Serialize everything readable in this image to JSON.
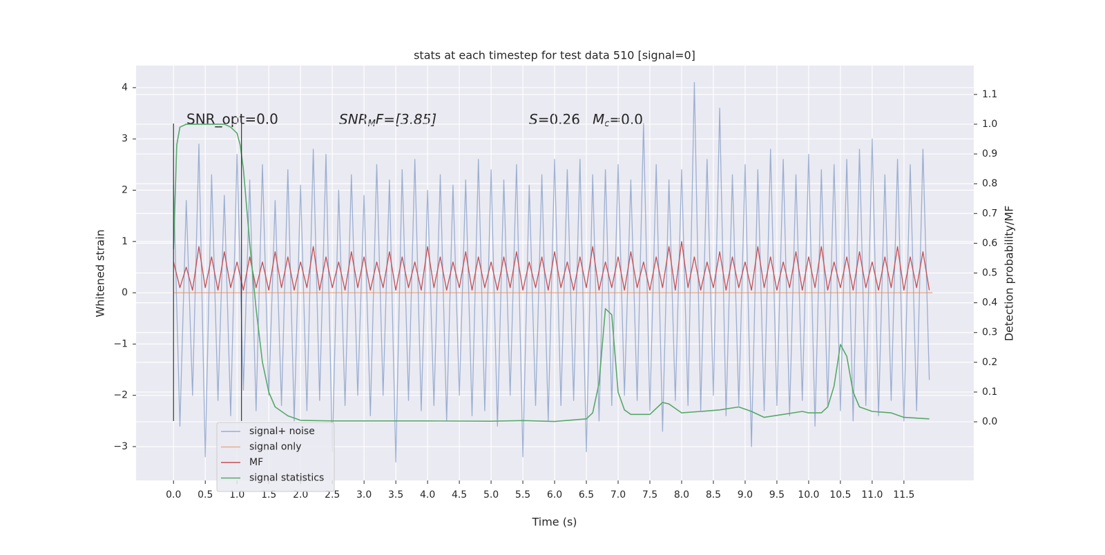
{
  "chart_data": {
    "type": "line",
    "title": "stats at each timestep for test data 510 [signal=0]",
    "xlabel": "Time (s)",
    "ylabel": "Whitened strain",
    "y2label": "Detection probability/MF",
    "xlim": [
      -0.59,
      12.6
    ],
    "ylim": [
      -3.66,
      4.43
    ],
    "y2lim": [
      -0.197,
      1.197
    ],
    "xticks": [
      {
        "value": 0,
        "label": "0.0"
      },
      {
        "value": 0.5,
        "label": "0.5"
      },
      {
        "value": 1,
        "label": "1.0"
      },
      {
        "value": 1.5,
        "label": "1.5"
      },
      {
        "value": 2,
        "label": "2.0"
      },
      {
        "value": 2.5,
        "label": "2.5"
      },
      {
        "value": 3,
        "label": "3.0"
      },
      {
        "value": 3.5,
        "label": "3.5"
      },
      {
        "value": 4,
        "label": "4.0"
      },
      {
        "value": 4.5,
        "label": "4.5"
      },
      {
        "value": 5,
        "label": "5.0"
      },
      {
        "value": 5.5,
        "label": "5.5"
      },
      {
        "value": 6,
        "label": "6.0"
      },
      {
        "value": 6.5,
        "label": "6.5"
      },
      {
        "value": 7,
        "label": "7.0"
      },
      {
        "value": 7.5,
        "label": "7.5"
      },
      {
        "value": 8,
        "label": "8.0"
      },
      {
        "value": 8.5,
        "label": "8.5"
      },
      {
        "value": 9,
        "label": "9.0"
      },
      {
        "value": 9.5,
        "label": "9.5"
      },
      {
        "value": 10,
        "label": "10.0"
      },
      {
        "value": 10.5,
        "label": "10.5"
      },
      {
        "value": 11,
        "label": "11.0"
      },
      {
        "value": 11.5,
        "label": "11.5"
      }
    ],
    "yticks": [
      {
        "value": -3,
        "label": "−3"
      },
      {
        "value": -2,
        "label": "−2"
      },
      {
        "value": -1,
        "label": "−1"
      },
      0,
      1,
      2,
      3,
      4
    ],
    "y2ticks": [
      {
        "value": 0,
        "label": "0.0"
      },
      {
        "value": 0.1,
        "label": "0.1"
      },
      {
        "value": 0.2,
        "label": "0.2"
      },
      {
        "value": 0.3,
        "label": "0.3"
      },
      {
        "value": 0.4,
        "label": "0.4"
      },
      {
        "value": 0.5,
        "label": "0.5"
      },
      {
        "value": 0.6,
        "label": "0.6"
      },
      {
        "value": 0.7,
        "label": "0.7"
      },
      {
        "value": 0.8,
        "label": "0.8"
      },
      {
        "value": 0.9,
        "label": "0.9"
      },
      {
        "value": 1.0,
        "label": "1.0"
      },
      {
        "value": 1.1,
        "label": "1.1"
      }
    ],
    "grid": true,
    "legend": "lower left",
    "x": [
      0.0,
      0.1,
      0.2,
      0.3,
      0.4,
      0.5,
      0.6,
      0.7,
      0.8,
      0.9,
      1.0,
      1.1,
      1.2,
      1.3,
      1.4,
      1.5,
      1.6,
      1.7,
      1.8,
      1.9,
      2.0,
      2.1,
      2.2,
      2.3,
      2.4,
      2.5,
      2.6,
      2.7,
      2.8,
      2.9,
      3.0,
      3.1,
      3.2,
      3.3,
      3.4,
      3.5,
      3.6,
      3.7,
      3.8,
      3.9,
      4.0,
      4.1,
      4.2,
      4.3,
      4.4,
      4.5,
      4.6,
      4.7,
      4.8,
      4.9,
      5.0,
      5.1,
      5.2,
      5.3,
      5.4,
      5.5,
      5.6,
      5.7,
      5.8,
      5.9,
      6.0,
      6.1,
      6.2,
      6.3,
      6.4,
      6.5,
      6.6,
      6.7,
      6.8,
      6.9,
      7.0,
      7.1,
      7.2,
      7.3,
      7.4,
      7.5,
      7.6,
      7.7,
      7.8,
      7.9,
      8.0,
      8.1,
      8.2,
      8.3,
      8.4,
      8.5,
      8.6,
      8.7,
      8.8,
      8.9,
      9.0,
      9.1,
      9.2,
      9.3,
      9.4,
      9.5,
      9.6,
      9.7,
      9.8,
      9.9,
      10.0,
      10.1,
      10.2,
      10.3,
      10.4,
      10.5,
      10.6,
      10.7,
      10.8,
      10.9,
      11.0,
      11.1,
      11.2,
      11.3,
      11.4,
      11.5,
      11.6,
      11.7,
      11.8,
      11.9
    ],
    "series": [
      {
        "name": "signal+ noise",
        "color": "#4c72b0",
        "values": [
          2.1,
          -2.6,
          1.8,
          -2.0,
          2.9,
          -3.2,
          2.3,
          -2.1,
          1.9,
          -2.4,
          2.7,
          -1.9,
          2.2,
          -2.3,
          2.5,
          -2.0,
          1.8,
          -2.2,
          2.4,
          -2.5,
          2.1,
          -2.3,
          2.8,
          -2.1,
          2.7,
          -3.1,
          2.0,
          -2.2,
          2.3,
          -2.0,
          1.9,
          -2.4,
          2.5,
          -2.0,
          2.2,
          -3.3,
          2.4,
          -2.1,
          2.6,
          -2.3,
          2.0,
          -2.2,
          2.3,
          -2.5,
          2.1,
          -2.0,
          2.2,
          -2.4,
          2.6,
          -2.3,
          2.4,
          -2.6,
          2.2,
          -2.0,
          2.5,
          -3.2,
          2.1,
          -2.2,
          2.3,
          -2.5,
          2.6,
          -2.2,
          2.4,
          -2.1,
          2.6,
          -3.1,
          2.3,
          -2.5,
          2.4,
          -2.2,
          2.5,
          -2.0,
          2.2,
          -2.1,
          3.3,
          -2.3,
          2.5,
          -2.7,
          2.2,
          -2.1,
          2.4,
          -2.2,
          4.1,
          -2.3,
          2.6,
          -2.0,
          3.6,
          -2.4,
          2.3,
          -2.2,
          2.5,
          -3.0,
          2.4,
          -2.3,
          2.8,
          -2.2,
          2.6,
          -2.4,
          2.3,
          -2.1,
          2.7,
          -2.6,
          2.4,
          -2.2,
          2.5,
          -2.3,
          2.6,
          -2.5,
          2.8,
          -2.2,
          3.0,
          -2.4,
          2.3,
          -2.1,
          2.6,
          -2.5,
          2.5,
          -2.3,
          2.8,
          -1.7
        ]
      },
      {
        "name": "signal only",
        "color": "#dd8452",
        "x": [
          0.0,
          11.95
        ],
        "values": [
          0.0,
          0.0
        ]
      },
      {
        "name": "MF",
        "color": "#c44e52",
        "values": [
          0.6,
          0.1,
          0.5,
          0.05,
          0.9,
          0.1,
          0.7,
          0.05,
          0.8,
          0.1,
          0.6,
          0.05,
          0.7,
          0.1,
          0.6,
          0.05,
          0.8,
          0.1,
          0.7,
          0.05,
          0.6,
          0.1,
          0.9,
          0.05,
          0.7,
          0.1,
          0.6,
          0.05,
          0.8,
          0.1,
          0.7,
          0.05,
          0.6,
          0.1,
          0.8,
          0.05,
          0.7,
          0.1,
          0.6,
          0.05,
          0.9,
          0.1,
          0.7,
          0.05,
          0.6,
          0.1,
          0.8,
          0.05,
          0.7,
          0.1,
          0.6,
          0.05,
          0.7,
          0.1,
          0.8,
          0.05,
          0.6,
          0.1,
          0.7,
          0.05,
          0.8,
          0.1,
          0.6,
          0.05,
          0.7,
          0.1,
          0.9,
          0.05,
          0.6,
          0.1,
          0.7,
          0.05,
          0.8,
          0.1,
          0.6,
          0.05,
          0.7,
          0.1,
          0.9,
          0.05,
          1.0,
          0.1,
          0.7,
          0.05,
          0.6,
          0.1,
          0.8,
          0.05,
          0.7,
          0.1,
          0.6,
          0.05,
          0.9,
          0.1,
          0.7,
          0.05,
          0.6,
          0.1,
          0.8,
          0.05,
          0.7,
          0.1,
          0.9,
          0.05,
          0.6,
          0.1,
          0.7,
          0.05,
          0.8,
          0.1,
          0.6,
          0.05,
          0.7,
          0.1,
          0.9,
          0.05,
          0.7,
          0.1,
          0.8,
          0.05
        ]
      },
      {
        "name": "signal statistics",
        "color": "#55a868",
        "axis": "y2",
        "x": [
          0.0,
          0.05,
          0.1,
          0.2,
          0.5,
          0.8,
          0.9,
          1.0,
          1.05,
          1.1,
          1.2,
          1.3,
          1.4,
          1.5,
          1.6,
          1.8,
          2.0,
          2.5,
          3.0,
          4.0,
          5.0,
          5.5,
          6.0,
          6.5,
          6.6,
          6.7,
          6.8,
          6.9,
          7.0,
          7.1,
          7.2,
          7.5,
          7.7,
          7.8,
          8.0,
          8.3,
          8.6,
          8.9,
          9.1,
          9.3,
          9.6,
          9.9,
          10.0,
          10.2,
          10.3,
          10.4,
          10.5,
          10.6,
          10.7,
          10.8,
          11.0,
          11.3,
          11.5,
          11.9
        ],
        "values": [
          0.58,
          0.93,
          0.99,
          1.0,
          1.0,
          1.0,
          0.99,
          0.97,
          0.93,
          0.85,
          0.6,
          0.38,
          0.2,
          0.1,
          0.05,
          0.02,
          0.005,
          0.003,
          0.003,
          0.003,
          0.002,
          0.004,
          0.001,
          0.01,
          0.03,
          0.13,
          0.38,
          0.36,
          0.1,
          0.04,
          0.025,
          0.025,
          0.065,
          0.06,
          0.03,
          0.035,
          0.04,
          0.05,
          0.035,
          0.015,
          0.025,
          0.035,
          0.03,
          0.03,
          0.05,
          0.12,
          0.26,
          0.22,
          0.1,
          0.05,
          0.035,
          0.03,
          0.015,
          0.01
        ]
      }
    ],
    "vlines": {
      "x": [
        0.0,
        1.07
      ],
      "ymin": -2.5,
      "ymax": 3.3
    },
    "annotations": [
      {
        "text": "SNR_opt=0.0"
      },
      {
        "base": "SNR",
        "sub": "M",
        "rest": "F=[3.85]"
      },
      {
        "base": "S",
        "rest": "=0.26"
      },
      {
        "base": "M",
        "sub": "c",
        "rest": "=0.0"
      }
    ]
  }
}
